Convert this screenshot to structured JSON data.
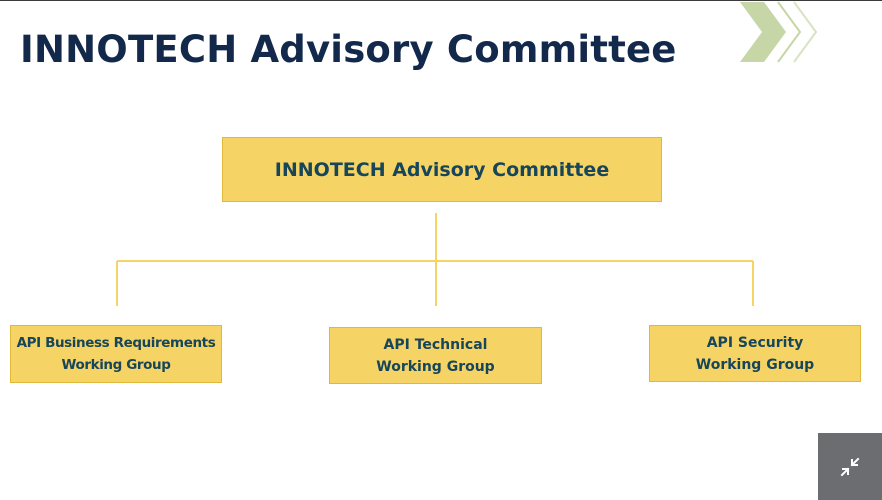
{
  "slide": {
    "title": "INNOTECH Advisory Committee"
  },
  "org_chart": {
    "root": {
      "label": "INNOTECH Advisory Committee"
    },
    "children": [
      {
        "line1": "API Business Requirements",
        "line2": "Working Group"
      },
      {
        "line1": "API Technical",
        "line2": "Working Group"
      },
      {
        "line1": "API Security",
        "line2": "Working Group"
      }
    ]
  },
  "colors": {
    "title_text": "#13294b",
    "box_fill": "#f5d465",
    "box_text": "#17455a",
    "connector": "#f5d465",
    "chevron": "#c7d6a6"
  },
  "icons": {
    "decoration": "double-chevron-right-icon",
    "exit_fullscreen": "collapse-arrows-icon"
  }
}
